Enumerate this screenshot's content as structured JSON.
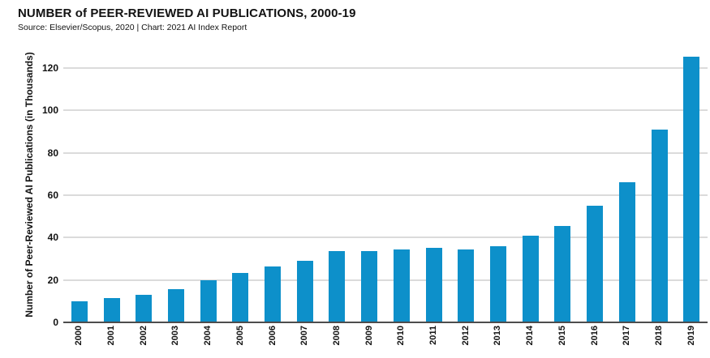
{
  "header": {
    "title": "NUMBER of PEER-REVIEWED AI PUBLICATIONS, 2000-19",
    "source": "Source: Elsevier/Scopus, 2020 | Chart: 2021 AI Index Report"
  },
  "chart_data": {
    "type": "bar",
    "title": "NUMBER of PEER-REVIEWED AI PUBLICATIONS, 2000-19",
    "categories": [
      "2000",
      "2001",
      "2002",
      "2003",
      "2004",
      "2005",
      "2006",
      "2007",
      "2008",
      "2009",
      "2010",
      "2011",
      "2012",
      "2013",
      "2014",
      "2015",
      "2016",
      "2017",
      "2018",
      "2019"
    ],
    "values": [
      10,
      11.5,
      13,
      15.5,
      20,
      23.5,
      26.5,
      29,
      33.5,
      33.5,
      34.5,
      35,
      34.5,
      36,
      41,
      45.5,
      55,
      66,
      91,
      125.5
    ],
    "xlabel": "",
    "ylabel": "Number of Peer-Reviewed AI Publications (in Thousands)",
    "ylim": [
      0,
      130
    ],
    "yticks": [
      0,
      20,
      40,
      60,
      80,
      100,
      120
    ],
    "grid": "horizontal",
    "legend": "none",
    "bar_color": "#0d90ca",
    "gridline_color": "#dbdbdb",
    "axis_line_color": "#4d4d4d",
    "text_color": "#121212"
  }
}
